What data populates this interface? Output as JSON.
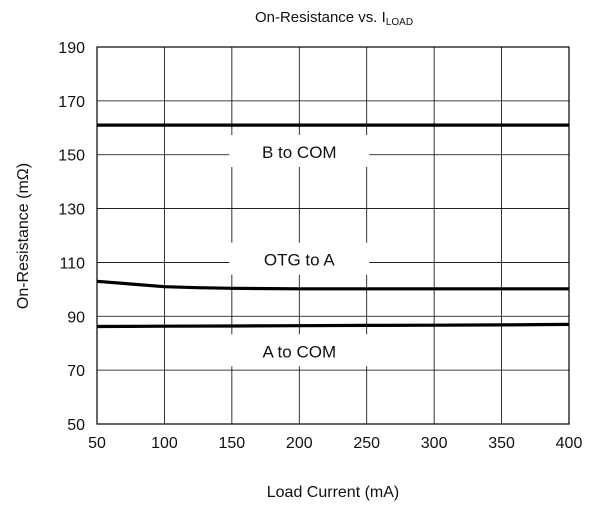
{
  "chart_data": {
    "type": "line",
    "title_main": "On-Resistance vs. I",
    "title_sub": "LOAD",
    "xlabel": "Load Current (mA)",
    "ylabel": "On-Resistance (mΩ)",
    "xlim": [
      50,
      400
    ],
    "ylim": [
      50,
      190
    ],
    "x_ticks": [
      50,
      100,
      150,
      200,
      250,
      300,
      350,
      400
    ],
    "y_ticks": [
      50,
      70,
      90,
      110,
      130,
      150,
      170,
      190
    ],
    "grid": true,
    "series": [
      {
        "name": "B to COM",
        "x": [
          50,
          100,
          150,
          200,
          250,
          300,
          350,
          400
        ],
        "y": [
          161,
          161,
          161,
          161,
          161,
          161,
          161,
          161
        ],
        "label_x": 200,
        "label_y": 151
      },
      {
        "name": "OTG to A",
        "x": [
          50,
          75,
          100,
          125,
          150,
          200,
          250,
          300,
          350,
          400
        ],
        "y": [
          103,
          102,
          101,
          100.6,
          100.4,
          100.2,
          100.2,
          100.2,
          100.2,
          100.2
        ],
        "label_x": 200,
        "label_y": 111
      },
      {
        "name": "A to COM",
        "x": [
          50,
          100,
          150,
          200,
          250,
          300,
          350,
          400
        ],
        "y": [
          86.2,
          86.3,
          86.4,
          86.5,
          86.6,
          86.7,
          86.8,
          87
        ],
        "label_x": 200,
        "label_y": 77
      }
    ]
  }
}
